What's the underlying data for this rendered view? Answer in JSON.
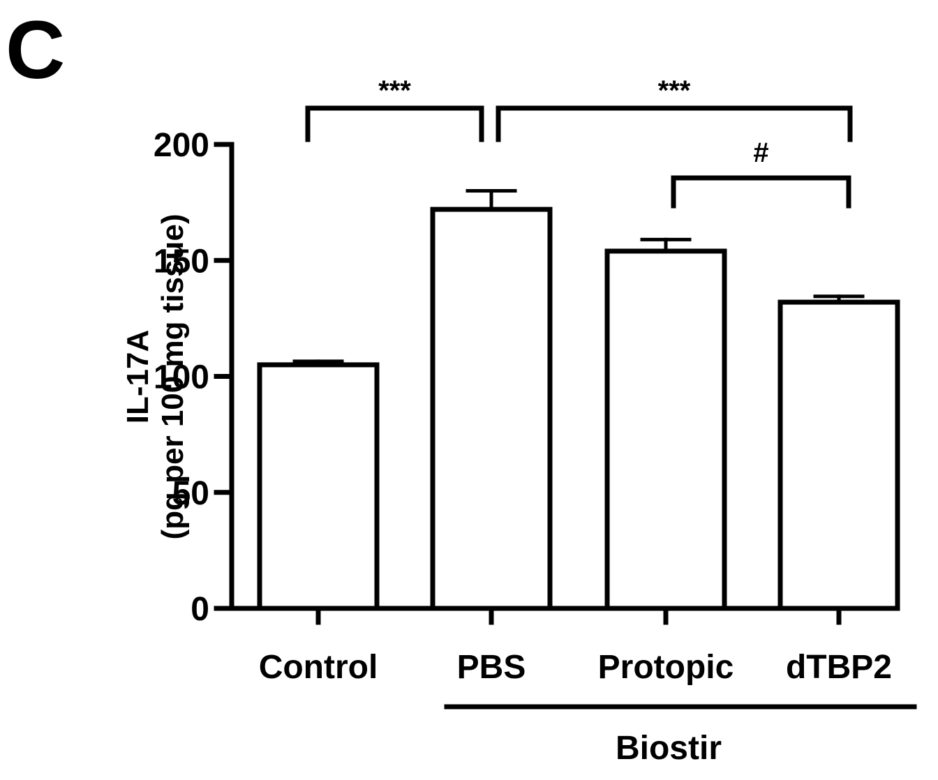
{
  "panel_label": "C",
  "chart_data": {
    "type": "bar",
    "categories": [
      "Control",
      "PBS",
      "Protopic",
      "dTBP2"
    ],
    "values": [
      105,
      172,
      154,
      132
    ],
    "error": [
      1.5,
      8,
      5,
      2.5
    ],
    "ylabel_line1": "IL-17A",
    "ylabel_line2": "(pg per 100 mg tissue)",
    "yticks": [
      0,
      50,
      100,
      150,
      200
    ],
    "ylim": [
      0,
      200
    ],
    "grid": false,
    "group": {
      "label": "Biostir",
      "categories": [
        "PBS",
        "Protopic",
        "dTBP2"
      ]
    },
    "significance": [
      {
        "from": "Control",
        "to": "PBS",
        "label": "***"
      },
      {
        "from": "PBS",
        "to": "dTBP2",
        "label": "***"
      },
      {
        "from": "Protopic",
        "to": "dTBP2",
        "label": "#"
      }
    ],
    "colors": {
      "bar_fill": "#ffffff",
      "stroke": "#000000"
    }
  }
}
